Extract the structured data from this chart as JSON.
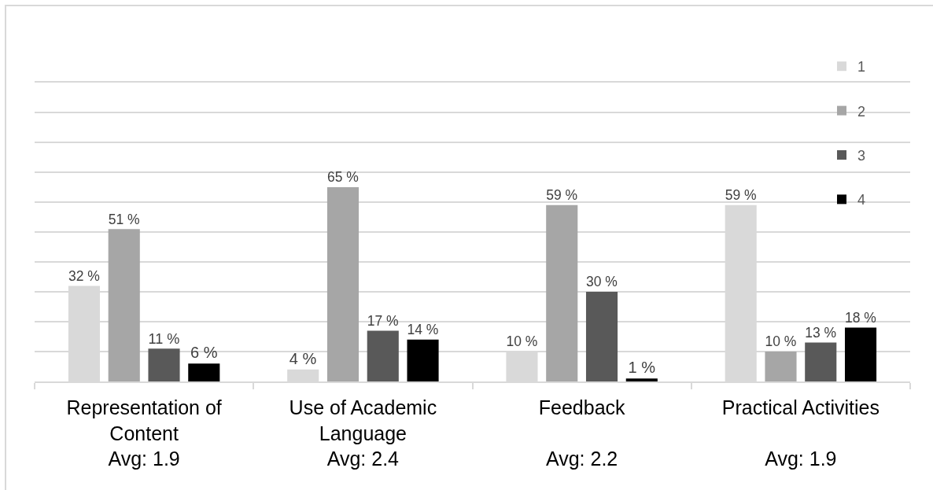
{
  "chart_data": {
    "type": "bar",
    "categories": [
      "Representation of\nContent\nAvg: 1.9",
      "Use of Academic\nLanguage\nAvg: 2.4",
      "Feedback\n\nAvg: 2.2",
      "Practical Activities\n\nAvg: 1.9"
    ],
    "series": [
      {
        "name": "1",
        "color": "#d9d9d9",
        "values": [
          32,
          4,
          10,
          59
        ],
        "value_labels": [
          "32 %",
          "4 %",
          "10 %",
          "59 %"
        ]
      },
      {
        "name": "2",
        "color": "#a6a6a6",
        "values": [
          51,
          65,
          59,
          10
        ],
        "value_labels": [
          "51 %",
          "65 %",
          "59 %",
          "10 %"
        ]
      },
      {
        "name": "3",
        "color": "#595959",
        "values": [
          11,
          17,
          30,
          13
        ],
        "value_labels": [
          "11 %",
          "17 %",
          "30 %",
          "13 %"
        ]
      },
      {
        "name": "4",
        "color": "#000000",
        "values": [
          6,
          14,
          1,
          18
        ],
        "value_labels": [
          "6 %",
          "14 %",
          "1 %",
          "18 %"
        ]
      }
    ],
    "ylim": [
      0,
      100
    ],
    "yticks": [
      {
        "value": 0,
        "label": null
      },
      {
        "value": 10,
        "label": null
      },
      {
        "value": 20,
        "label": null
      },
      {
        "value": 30,
        "label": null
      },
      {
        "value": 40,
        "label": null
      },
      {
        "value": 50,
        "label": null
      },
      {
        "value": 60,
        "label": null
      },
      {
        "value": 70,
        "label": null
      },
      {
        "value": 80,
        "label": null
      },
      {
        "value": 90,
        "label": null
      },
      {
        "value": 100,
        "label": null
      }
    ],
    "tick_labels": "x",
    "grid": "y",
    "legend": "top right"
  }
}
